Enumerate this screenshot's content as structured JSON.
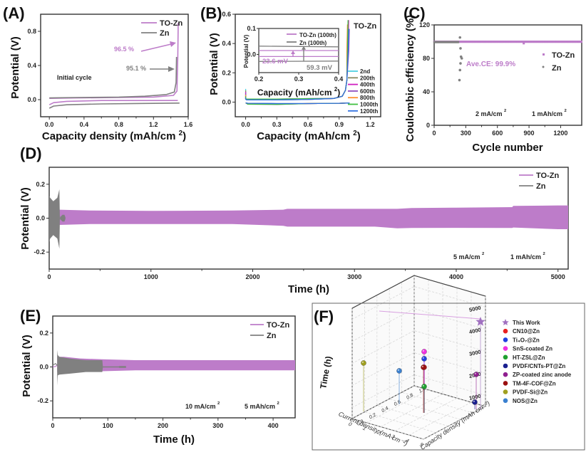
{
  "colors": {
    "tozn": "#bd7cc9",
    "zn": "#808080",
    "axis": "#333333"
  },
  "chart_data": [
    {
      "id": "A",
      "type": "line",
      "panel_label": "(A)",
      "xlabel": "Capacity density (mAh/cm ",
      "xlabel_sup": "2",
      "xlabel_close": ")",
      "ylabel": "Potential (V)",
      "xlim": [
        -0.1,
        1.6
      ],
      "ylim": [
        -0.2,
        1.0
      ],
      "xticks": [
        "0.0",
        "0.4",
        "0.8",
        "1.2",
        "1.6"
      ],
      "xtick_values": [
        0.0,
        0.4,
        0.8,
        1.2,
        1.6
      ],
      "yticks": [
        "0.0",
        "0.4",
        "0.8"
      ],
      "ytick_values": [
        0.0,
        0.4,
        0.8
      ],
      "legend": [
        "TO-Zn",
        "Zn"
      ],
      "legend_position": "top-right",
      "annotations": {
        "cycle": "Initial cycle",
        "tozn_ce": "96.5 %",
        "zn_ce": "95.1 %"
      },
      "series": [
        {
          "name": "TO-Zn plating",
          "color_key": "tozn",
          "x": [
            0.0,
            0.05,
            0.2,
            0.6,
            1.0,
            1.4,
            1.48
          ],
          "y": [
            -0.06,
            -0.035,
            -0.02,
            -0.01,
            -0.01,
            -0.01,
            -0.01
          ]
        },
        {
          "name": "TO-Zn stripping",
          "color_key": "tozn",
          "x": [
            0.0,
            0.3,
            0.8,
            1.2,
            1.43,
            1.47,
            1.48,
            1.485
          ],
          "y": [
            0.015,
            0.02,
            0.025,
            0.03,
            0.05,
            0.1,
            0.5,
            0.9
          ]
        },
        {
          "name": "Zn plating",
          "color_key": "zn",
          "x": [
            0.0,
            0.05,
            0.2,
            0.6,
            1.0,
            1.5
          ],
          "y": [
            -0.1,
            -0.075,
            -0.06,
            -0.05,
            -0.045,
            -0.04
          ]
        },
        {
          "name": "Zn stripping",
          "color_key": "zn",
          "x": [
            0.0,
            0.3,
            0.8,
            1.1,
            1.35,
            1.44,
            1.46,
            1.465
          ],
          "y": [
            0.02,
            0.025,
            0.03,
            0.04,
            0.06,
            0.09,
            0.2,
            0.5
          ]
        }
      ]
    },
    {
      "id": "B",
      "type": "line",
      "panel_label": "(B)",
      "title": "TO-Zn",
      "xlabel": "Capacity (mAh/cm ",
      "xlabel_sup": "2",
      "xlabel_close": ")",
      "ylabel": "Potential (V)",
      "xlim": [
        -0.1,
        1.3
      ],
      "ylim": [
        -0.1,
        0.6
      ],
      "xticks": [
        "0.0",
        "0.3",
        "0.6",
        "0.9",
        "1.2"
      ],
      "xtick_values": [
        0.0,
        0.3,
        0.6,
        0.9,
        1.2
      ],
      "yticks": [
        "0.0",
        "0.2",
        "0.4",
        "0.6"
      ],
      "ytick_values": [
        0.0,
        0.2,
        0.4,
        0.6
      ],
      "legend_position": "bottom-right",
      "series": [
        {
          "name": "2nd",
          "color": "#4fd0e0"
        },
        {
          "name": "200th",
          "color": "#8a8a60"
        },
        {
          "name": "400th",
          "color": "#d020c0"
        },
        {
          "name": "600th",
          "color": "#9050c0"
        },
        {
          "name": "800th",
          "color": "#ff9030"
        },
        {
          "name": "1000th",
          "color": "#40c040"
        },
        {
          "name": "1200th",
          "color": "#3070e0"
        }
      ],
      "inset": {
        "xlabel": "Capacity (mAh/cm ",
        "xlabel_sup": "2",
        "xlabel_close": ")",
        "ylabel": "Potential (V)",
        "xlim": [
          0.2,
          0.4
        ],
        "ylim": [
          -0.07,
          0.1
        ],
        "xticks": [
          "0.2",
          "0.3",
          "0.4"
        ],
        "xtick_values": [
          0.2,
          0.3,
          0.4
        ],
        "yticks": [
          "0.0",
          "0.1"
        ],
        "ytick_values": [
          0.0,
          0.1
        ],
        "legend": [
          "TO-Zn (100th)",
          "Zn (100th)"
        ],
        "tozn_lines": [
          0.015,
          -0.008
        ],
        "zn_lines": [
          0.032,
          -0.027
        ],
        "tozn_label": "23.6 mV",
        "zn_label": "59.3 mV"
      }
    },
    {
      "id": "C",
      "type": "scatter",
      "panel_label": "(C)",
      "xlabel": "Cycle number",
      "ylabel": "Coulombic efficiency (%)",
      "xlim": [
        0,
        1400
      ],
      "ylim": [
        0,
        120
      ],
      "xticks": [
        "0",
        "300",
        "600",
        "900",
        "1200"
      ],
      "xtick_values": [
        0,
        300,
        600,
        900,
        1200
      ],
      "yticks": [
        "0",
        "40",
        "80",
        "120"
      ],
      "ytick_values": [
        0,
        40,
        80,
        120
      ],
      "legend": [
        "TO-Zn",
        "Zn"
      ],
      "legend_position": "center-right",
      "annotations": {
        "avg": "Ave.CE: 99.9%",
        "current": "2 mA/cm ",
        "capacity": "1 mAh/cm ",
        "sup": "2"
      },
      "series": [
        {
          "name": "TO-Zn",
          "color_key": "tozn",
          "x_range": [
            0,
            1400
          ],
          "value": 99.9
        },
        {
          "name": "Zn",
          "color_key": "zn",
          "x_range": [
            0,
            230
          ],
          "value": 99.5,
          "outliers_x": [
            240,
            245,
            250,
            255,
            250,
            262,
            245
          ],
          "outliers_y": [
            54,
            66,
            74,
            82,
            92,
            80,
            105
          ]
        }
      ]
    },
    {
      "id": "D",
      "type": "area",
      "panel_label": "(D)",
      "xlabel": "Time (h)",
      "ylabel": "Potential (V)",
      "xlim": [
        0,
        5100
      ],
      "ylim": [
        -0.3,
        0.3
      ],
      "xticks": [
        "0",
        "1000",
        "2000",
        "3000",
        "4000",
        "5000"
      ],
      "xtick_values": [
        0,
        1000,
        2000,
        3000,
        4000,
        5000
      ],
      "yticks": [
        "-0.2",
        "0.0",
        "0.2"
      ],
      "ytick_values": [
        -0.2,
        0.0,
        0.2
      ],
      "legend": [
        "TO-Zn",
        "Zn"
      ],
      "legend_position": "top-right",
      "annotations": {
        "current": "5 mA/cm ",
        "capacity": "1 mAh/cm ",
        "sup": "2"
      },
      "series": [
        {
          "name": "TO-Zn",
          "color_key": "tozn",
          "x": [
            100,
            400,
            1000,
            1800,
            2300,
            2340,
            3200,
            3420,
            3560,
            4000,
            4550,
            4560,
            5000,
            5100
          ],
          "upper": [
            0.05,
            0.045,
            0.043,
            0.045,
            0.05,
            0.055,
            0.055,
            0.055,
            0.06,
            0.062,
            0.065,
            0.072,
            0.075,
            0.075
          ],
          "lower": [
            -0.04,
            -0.035,
            -0.035,
            -0.035,
            -0.045,
            -0.05,
            -0.05,
            -0.06,
            -0.058,
            -0.057,
            -0.058,
            -0.055,
            -0.065,
            -0.065
          ]
        },
        {
          "name": "Zn",
          "color_key": "zn",
          "x": [
            0,
            10,
            40,
            80,
            100,
            105,
            110,
            115,
            130,
            150,
            160
          ],
          "upper": [
            0.13,
            0.12,
            0.1,
            0.12,
            0.17,
            0.0,
            0.01,
            0.01,
            0.02,
            0.02,
            0.005
          ],
          "lower": [
            -0.14,
            -0.12,
            -0.1,
            -0.12,
            -0.18,
            0.0,
            -0.01,
            -0.01,
            -0.02,
            -0.02,
            -0.005
          ]
        }
      ]
    },
    {
      "id": "E",
      "type": "area",
      "panel_label": "(E)",
      "xlabel": "Time (h)",
      "ylabel": "Potential (V)",
      "xlim": [
        0,
        440
      ],
      "ylim": [
        -0.3,
        0.3
      ],
      "xticks": [
        "0",
        "100",
        "200",
        "300",
        "400"
      ],
      "xtick_values": [
        0,
        100,
        200,
        300,
        400
      ],
      "yticks": [
        "-0.2",
        "0.0",
        "0.2"
      ],
      "ytick_values": [
        -0.2,
        0.0,
        0.2
      ],
      "legend": [
        "TO-Zn",
        "Zn"
      ],
      "legend_position": "top-right",
      "annotations": {
        "current": "10 mA/cm ",
        "capacity": "5 mAh/cm ",
        "sup": "2"
      },
      "series": [
        {
          "name": "TO-Zn",
          "color_key": "tozn",
          "x": [
            8,
            20,
            50,
            90,
            150,
            300,
            440
          ],
          "upper": [
            0.06,
            0.06,
            0.05,
            0.045,
            0.04,
            0.04,
            0.04
          ],
          "lower": [
            -0.03,
            -0.025,
            -0.025,
            -0.025,
            -0.02,
            -0.02,
            -0.02
          ]
        },
        {
          "name": "Zn",
          "color_key": "zn",
          "x": [
            8,
            9,
            12,
            30,
            60,
            80,
            90,
            91,
            120,
            121,
            133
          ],
          "upper": [
            0.1,
            0.07,
            0.06,
            0.05,
            0.04,
            0.04,
            0.04,
            0.003,
            0.003,
            0.005,
            0.005
          ],
          "lower": [
            -0.11,
            -0.05,
            -0.045,
            -0.04,
            -0.03,
            -0.03,
            -0.03,
            -0.003,
            -0.003,
            -0.005,
            -0.005
          ]
        }
      ]
    },
    {
      "id": "F",
      "type": "scatter",
      "subtype": "3d-scatter",
      "panel_label": "(F)",
      "xlabel": "Current density (mA cm⁻²)",
      "ylabel": "Capacity density (mAh cm⁻²)",
      "zlabel": "Time (h)",
      "xlim": [
        0,
        5
      ],
      "ylim": [
        0,
        1.0
      ],
      "zlim": [
        500,
        5500
      ],
      "xticks": [
        "0",
        "1",
        "2",
        "3",
        "4",
        "5"
      ],
      "xtick_values": [
        0,
        1,
        2,
        3,
        4,
        5
      ],
      "yticks": [
        "0.0",
        "0.2",
        "0.4",
        "0.6",
        "0.8",
        "1.0"
      ],
      "ytick_values": [
        0.0,
        0.2,
        0.4,
        0.6,
        0.8,
        1.0
      ],
      "zticks": [
        "1000",
        "2000",
        "3000",
        "4000",
        "5000"
      ],
      "ztick_values": [
        1000,
        2000,
        3000,
        4000,
        5000
      ],
      "legend_position": "right",
      "points": [
        {
          "name": "This Work",
          "marker": "star",
          "color": "#a070c0",
          "x": 5,
          "y": 1.0,
          "z": 5100
        },
        {
          "name": "CN10@Zn",
          "marker": "sphere",
          "color": "#e82020",
          "x": 2,
          "y": 1.0,
          "z": 2900
        },
        {
          "name": "Ti₄O₇@Zn",
          "marker": "sphere",
          "color": "#2040e0",
          "x": 2,
          "y": 1.0,
          "z": 3300
        },
        {
          "name": "SnS-coated Zn",
          "marker": "sphere",
          "color": "#f030e0",
          "x": 2,
          "y": 1.0,
          "z": 3700
        },
        {
          "name": "HT-ZSL@Zn",
          "marker": "sphere",
          "color": "#20a030",
          "x": 2,
          "y": 1.0,
          "z": 1900
        },
        {
          "name": "PVDF/CNTs-PT@Zn",
          "marker": "sphere",
          "color": "#1a2090",
          "x": 5,
          "y": 1.0,
          "z": 1100
        },
        {
          "name": "ZP-coated zinc anode",
          "marker": "sphere",
          "color": "#902090",
          "x": 5,
          "y": 1.0,
          "z": 2600
        },
        {
          "name": "TM-4F-COF@Zn",
          "marker": "sphere",
          "color": "#9a1010",
          "x": 2,
          "y": 1.0,
          "z": 2900
        },
        {
          "name": "PVDF-Si@Zn",
          "marker": "sphere",
          "color": "#a0a020",
          "x": 1,
          "y": 0.5,
          "z": 3100
        },
        {
          "name": "NOS@Zn",
          "marker": "sphere",
          "color": "#3a80d0",
          "x": 2,
          "y": 0.5,
          "z": 2700
        }
      ]
    }
  ]
}
